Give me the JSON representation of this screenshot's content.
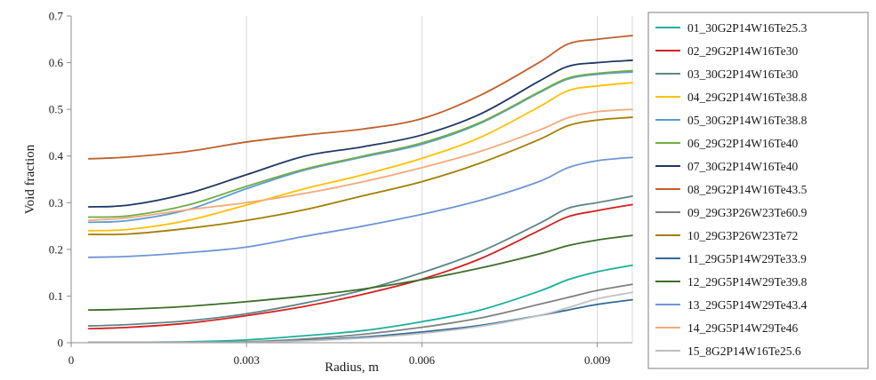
{
  "chart_data": {
    "type": "line",
    "xlabel": "Radius, m",
    "ylabel": "Void fraction",
    "xlim": [
      0,
      0.0096
    ],
    "ylim": [
      0,
      0.7
    ],
    "xticks": [
      0,
      0.003,
      0.006,
      0.009
    ],
    "xtick_labels": [
      "0",
      "0.003",
      "0.006",
      "0.009"
    ],
    "yticks": [
      0,
      0.1,
      0.2,
      0.3,
      0.4,
      0.5,
      0.6,
      0.7
    ],
    "ytick_labels": [
      "0",
      "0.1",
      "0.2",
      "0.3",
      "0.4",
      "0.5",
      "0.6",
      "0.7"
    ],
    "grid": {
      "vertical": true,
      "horizontal": false
    },
    "legend_position": "right",
    "x": [
      0.0003,
      0.001,
      0.002,
      0.003,
      0.004,
      0.005,
      0.006,
      0.007,
      0.008,
      0.0085,
      0.009,
      0.0096
    ],
    "series": [
      {
        "name": "01_30G2P14W16Te25.3",
        "color": "#1aaf9c",
        "values": [
          0.0,
          0.0,
          0.002,
          0.006,
          0.015,
          0.026,
          0.045,
          0.07,
          0.11,
          0.135,
          0.152,
          0.166
        ]
      },
      {
        "name": "02_29G2P14W16Te30",
        "color": "#d42020",
        "values": [
          0.03,
          0.033,
          0.042,
          0.058,
          0.078,
          0.104,
          0.136,
          0.18,
          0.24,
          0.27,
          0.283,
          0.296
        ]
      },
      {
        "name": "03_30G2P14W16Te30",
        "color": "#5f8686",
        "values": [
          0.036,
          0.039,
          0.047,
          0.062,
          0.085,
          0.113,
          0.15,
          0.195,
          0.255,
          0.288,
          0.3,
          0.314
        ]
      },
      {
        "name": "04_29G2P14W16Te38.8",
        "color": "#ffc000",
        "values": [
          0.24,
          0.243,
          0.262,
          0.295,
          0.33,
          0.36,
          0.395,
          0.44,
          0.505,
          0.54,
          0.55,
          0.557
        ]
      },
      {
        "name": "05_30G2P14W16Te38.8",
        "color": "#5b9bd5",
        "values": [
          0.258,
          0.262,
          0.285,
          0.33,
          0.37,
          0.398,
          0.425,
          0.47,
          0.535,
          0.565,
          0.575,
          0.58
        ]
      },
      {
        "name": "06_29G2P14W16Te40",
        "color": "#70ad47",
        "values": [
          0.269,
          0.272,
          0.295,
          0.335,
          0.372,
          0.4,
          0.428,
          0.472,
          0.537,
          0.567,
          0.577,
          0.583
        ]
      },
      {
        "name": "07_30G2P14W16Te40",
        "color": "#1f3864",
        "values": [
          0.291,
          0.295,
          0.32,
          0.36,
          0.4,
          0.42,
          0.445,
          0.49,
          0.56,
          0.592,
          0.6,
          0.605
        ]
      },
      {
        "name": "08_29G2P14W16Te43.5",
        "color": "#c0602a",
        "values": [
          0.394,
          0.398,
          0.41,
          0.43,
          0.445,
          0.458,
          0.48,
          0.53,
          0.6,
          0.64,
          0.65,
          0.658
        ]
      },
      {
        "name": "09_29G3P26W23Te60.9",
        "color": "#808080",
        "values": [
          0.0,
          0.0,
          0.0,
          0.002,
          0.008,
          0.018,
          0.033,
          0.053,
          0.082,
          0.097,
          0.112,
          0.125
        ]
      },
      {
        "name": "10_29G3P26W23Te72",
        "color": "#a37e00",
        "values": [
          0.232,
          0.233,
          0.245,
          0.262,
          0.285,
          0.315,
          0.345,
          0.385,
          0.435,
          0.465,
          0.477,
          0.483
        ]
      },
      {
        "name": "11_29G5P14W29Te33.9",
        "color": "#2e6b9a",
        "values": [
          0.0,
          0.0,
          0.0,
          0.0,
          0.005,
          0.012,
          0.023,
          0.037,
          0.058,
          0.07,
          0.082,
          0.092
        ]
      },
      {
        "name": "12_29G5P14W29Te39.8",
        "color": "#3c6e28",
        "values": [
          0.07,
          0.072,
          0.078,
          0.088,
          0.1,
          0.115,
          0.135,
          0.16,
          0.19,
          0.208,
          0.22,
          0.23
        ]
      },
      {
        "name": "13_29G5P14W29Te43.4",
        "color": "#6f95d8",
        "values": [
          0.183,
          0.185,
          0.193,
          0.205,
          0.228,
          0.25,
          0.275,
          0.305,
          0.345,
          0.375,
          0.39,
          0.397
        ]
      },
      {
        "name": "14_29G5P14W29Te46",
        "color": "#f4a97a",
        "values": [
          0.262,
          0.268,
          0.285,
          0.3,
          0.32,
          0.345,
          0.375,
          0.41,
          0.455,
          0.482,
          0.495,
          0.5
        ]
      },
      {
        "name": "15_8G2P14W16Te25.6",
        "color": "#c0c0c0",
        "values": [
          0.0,
          0.0,
          0.0,
          0.0,
          0.004,
          0.01,
          0.02,
          0.035,
          0.058,
          0.075,
          0.094,
          0.108
        ]
      }
    ]
  }
}
